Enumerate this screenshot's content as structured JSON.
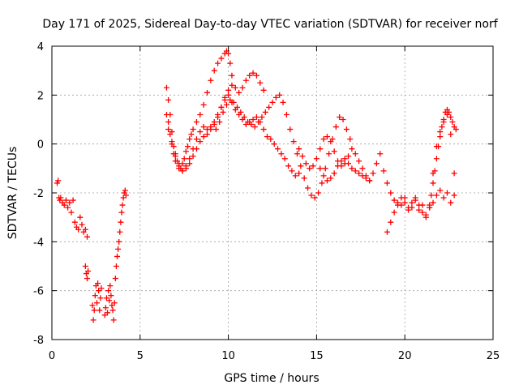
{
  "chart_data": {
    "type": "scatter",
    "title": "Day 171 of 2025, Sidereal Day-to-day VTEC variation (SDTVAR) for receiver norf",
    "xlabel": "GPS time / hours",
    "ylabel": "SDTVAR / TECUs",
    "xlim": [
      0,
      25
    ],
    "ylim": [
      -8,
      4
    ],
    "xticks": [
      0,
      5,
      10,
      15,
      20,
      25
    ],
    "xtick_labels": [
      "0",
      "5",
      "10",
      "15",
      "20",
      "25"
    ],
    "yticks": [
      -8,
      -6,
      -4,
      -2,
      0,
      2,
      4
    ],
    "ytick_labels": [
      "-8",
      "-6",
      "-4",
      "-2",
      "0",
      "2",
      "4"
    ],
    "grid": true,
    "marker": "plus",
    "series": [
      {
        "name": "SDTVAR",
        "color": "#ff0000",
        "x": [
          0.3,
          0.35,
          0.4,
          0.45,
          0.5,
          0.6,
          0.7,
          0.8,
          0.9,
          1.0,
          1.1,
          1.2,
          1.3,
          1.4,
          1.5,
          1.6,
          1.7,
          1.8,
          1.9,
          2.0,
          1.9,
          1.95,
          2.0,
          2.05,
          2.3,
          2.35,
          2.4,
          2.45,
          2.5,
          2.55,
          2.6,
          2.65,
          2.7,
          2.75,
          2.8,
          3.0,
          3.05,
          3.1,
          3.15,
          3.2,
          3.25,
          3.3,
          3.35,
          3.4,
          3.45,
          3.5,
          3.55,
          3.6,
          3.65,
          3.7,
          3.75,
          3.8,
          3.85,
          3.9,
          3.95,
          4.0,
          4.05,
          4.1,
          4.15,
          4.2,
          6.5,
          6.6,
          6.7,
          6.8,
          6.9,
          7.0,
          7.1,
          7.2,
          7.3,
          7.4,
          7.5,
          7.6,
          7.7,
          7.8,
          7.9,
          8.0,
          8.2,
          8.4,
          8.6,
          8.8,
          9.0,
          9.2,
          9.4,
          9.6,
          9.8,
          9.9,
          10.0,
          10.1,
          10.2,
          6.5,
          6.6,
          6.7,
          6.8,
          6.9,
          7.0,
          7.2,
          7.4,
          7.6,
          7.8,
          8.0,
          8.2,
          8.4,
          8.6,
          8.8,
          9.0,
          9.2,
          9.4,
          9.6,
          9.8,
          10.0,
          10.2,
          10.4,
          10.6,
          10.8,
          11.0,
          11.2,
          11.4,
          11.6,
          11.8,
          12.0,
          6.6,
          6.8,
          7.0,
          7.2,
          7.4,
          7.6,
          7.8,
          8.0,
          8.2,
          8.4,
          8.6,
          8.8,
          9.0,
          9.2,
          9.4,
          9.6,
          9.8,
          10.0,
          10.2,
          10.4,
          10.6,
          10.8,
          11.0,
          11.2,
          11.4,
          11.6,
          11.8,
          12.0,
          12.2,
          12.4,
          12.6,
          12.8,
          13.0,
          13.2,
          13.4,
          13.6,
          13.8,
          14.0,
          9.3,
          9.5,
          9.7,
          9.9,
          10.1,
          10.3,
          10.5,
          10.7,
          10.9,
          11.1,
          11.3,
          11.5,
          11.7,
          11.9,
          12.1,
          12.3,
          12.5,
          12.7,
          12.9,
          13.1,
          13.3,
          13.5,
          13.7,
          13.9,
          14.1,
          14.3,
          14.5,
          14.7,
          14.9,
          15.1,
          15.3,
          15.5,
          15.7,
          15.9,
          16.1,
          16.3,
          16.5,
          16.7,
          16.9,
          14.0,
          14.2,
          14.4,
          14.6,
          14.8,
          15.0,
          15.2,
          15.4,
          15.6,
          15.8,
          16.0,
          16.2,
          16.4,
          16.6,
          16.8,
          17.0,
          17.2,
          17.4,
          17.6,
          17.8,
          18.0,
          15.2,
          15.4,
          15.6,
          15.8,
          16.0,
          16.2,
          16.4,
          16.6,
          16.8,
          17.0,
          17.2,
          17.4,
          17.6,
          17.8,
          18.0,
          18.2,
          18.4,
          18.6,
          18.8,
          19.0,
          19.2,
          19.4,
          19.6,
          19.8,
          20.0,
          20.2,
          20.4,
          20.6,
          20.8,
          21.0,
          21.2,
          21.4,
          21.6,
          21.8,
          22.0,
          22.2,
          22.4,
          22.6,
          22.8,
          19.0,
          19.2,
          19.4,
          19.6,
          19.8,
          20.0,
          20.2,
          20.4,
          20.6,
          20.8,
          21.0,
          21.2,
          21.4,
          21.5,
          21.6,
          21.7,
          21.8,
          21.9,
          22.0,
          22.1,
          22.2,
          22.3,
          22.4,
          22.5,
          22.6,
          22.7,
          22.8,
          22.9,
          21.4,
          21.6,
          21.8,
          22.0,
          22.2,
          22.4,
          22.6,
          22.8
        ],
        "y": [
          -1.6,
          -1.5,
          -2.2,
          -2.3,
          -2.2,
          -2.4,
          -2.5,
          -2.3,
          -2.6,
          -2.4,
          -2.8,
          -2.3,
          -3.2,
          -3.4,
          -3.5,
          -3.0,
          -3.3,
          -3.6,
          -3.5,
          -3.8,
          -5.0,
          -5.3,
          -5.5,
          -5.2,
          -6.6,
          -7.2,
          -6.8,
          -6.2,
          -5.8,
          -6.5,
          -5.7,
          -6.0,
          -6.8,
          -6.3,
          -5.9,
          -7.0,
          -6.7,
          -6.3,
          -6.9,
          -6.0,
          -6.4,
          -5.8,
          -6.2,
          -6.6,
          -6.8,
          -7.2,
          -6.5,
          -5.5,
          -5.0,
          -4.6,
          -4.3,
          -4.0,
          -3.6,
          -3.2,
          -2.8,
          -2.5,
          -2.2,
          -2.0,
          -1.9,
          -2.1,
          2.3,
          1.8,
          1.2,
          0.5,
          -0.1,
          -0.5,
          -0.7,
          -0.9,
          -1.0,
          -0.8,
          -0.6,
          -0.3,
          -0.1,
          0.2,
          0.4,
          0.6,
          0.9,
          1.2,
          1.6,
          2.1,
          2.6,
          3.0,
          3.3,
          3.5,
          3.7,
          3.8,
          3.7,
          3.3,
          2.8,
          1.2,
          0.9,
          0.4,
          0.0,
          -0.4,
          -0.7,
          -1.0,
          -1.1,
          -0.9,
          -0.6,
          -0.2,
          0.2,
          0.5,
          0.7,
          0.6,
          0.7,
          0.9,
          1.2,
          1.5,
          1.9,
          2.2,
          2.4,
          2.3,
          2.1,
          2.3,
          2.6,
          2.8,
          2.9,
          2.8,
          2.5,
          2.2,
          0.6,
          0.1,
          -0.4,
          -0.8,
          -1.1,
          -1.0,
          -0.8,
          -0.5,
          -0.2,
          0.1,
          0.3,
          0.4,
          0.6,
          0.8,
          1.1,
          1.5,
          1.8,
          2.0,
          1.7,
          1.4,
          1.2,
          1.0,
          0.8,
          0.9,
          1.0,
          1.1,
          0.9,
          0.6,
          0.3,
          0.2,
          0.0,
          -0.2,
          -0.4,
          -0.6,
          -0.9,
          -1.1,
          -1.3,
          -1.2,
          0.6,
          0.9,
          1.3,
          1.6,
          1.8,
          1.7,
          1.5,
          1.3,
          1.1,
          0.9,
          0.8,
          0.7,
          0.9,
          1.1,
          1.3,
          1.5,
          1.7,
          1.9,
          2.0,
          1.7,
          1.2,
          0.6,
          0.1,
          -0.4,
          -0.9,
          -1.4,
          -1.8,
          -2.1,
          -2.2,
          -2.0,
          -1.6,
          -1.0,
          -0.4,
          0.2,
          0.7,
          1.1,
          1.0,
          0.6,
          0.2,
          -0.2,
          -0.5,
          -0.8,
          -1.0,
          -0.9,
          -0.6,
          -0.2,
          0.2,
          0.3,
          0.1,
          -0.3,
          -0.7,
          -0.9,
          -0.8,
          -0.5,
          -0.2,
          -0.4,
          -0.7,
          -1.0,
          -1.3,
          -1.5,
          -1.0,
          -1.3,
          -1.5,
          -1.4,
          -1.2,
          -0.9,
          -0.7,
          -0.6,
          -0.8,
          -1.0,
          -1.1,
          -1.2,
          -1.3,
          -1.4,
          -1.5,
          -1.2,
          -0.8,
          -0.4,
          -1.1,
          -1.6,
          -2.0,
          -2.3,
          -2.4,
          -2.5,
          -2.2,
          -2.6,
          -2.4,
          -2.3,
          -2.7,
          -2.5,
          -2.9,
          -2.6,
          -2.4,
          -2.1,
          -1.9,
          -2.2,
          -2.0,
          -2.4,
          -2.1,
          -3.6,
          -3.2,
          -2.8,
          -2.5,
          -2.2,
          -2.4,
          -2.7,
          -2.6,
          -2.2,
          -2.5,
          -2.8,
          -3.0,
          -2.5,
          -2.1,
          -1.6,
          -1.1,
          -0.6,
          -0.1,
          0.3,
          0.7,
          1.0,
          1.3,
          1.4,
          1.3,
          1.1,
          0.9,
          0.7,
          0.6,
          -2.6,
          -1.2,
          -0.1,
          0.5,
          0.9,
          1.2,
          0.4,
          -1.2
        ]
      }
    ]
  }
}
